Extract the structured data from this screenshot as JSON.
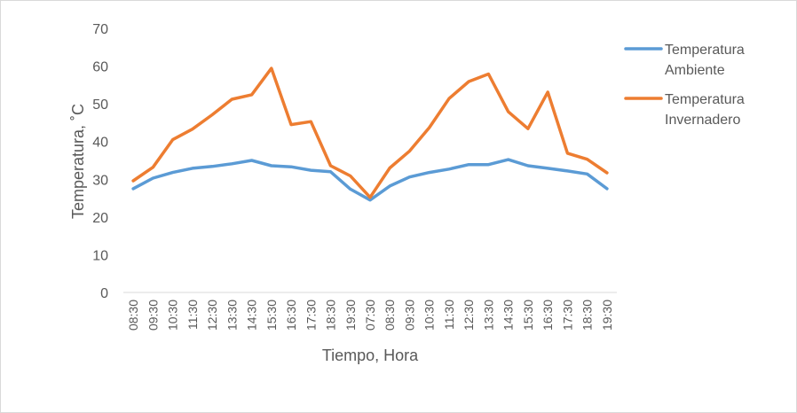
{
  "chart_data": {
    "type": "line",
    "xlabel": "Tiempo, Hora",
    "ylabel": "Temperatura, ˚C",
    "ylim": [
      0,
      70
    ],
    "yticks": [
      0,
      10,
      20,
      30,
      40,
      50,
      60,
      70
    ],
    "grid": false,
    "legend_position": "right",
    "categories": [
      "08:30",
      "09:30",
      "10:30",
      "11:30",
      "12:30",
      "13:30",
      "14:30",
      "15:30",
      "16:30",
      "17:30",
      "18:30",
      "19:30",
      "07:30",
      "08:30",
      "09:30",
      "10:30",
      "11:30",
      "12:30",
      "13:30",
      "14:30",
      "15:30",
      "16:30",
      "17:30",
      "18:30",
      "19:30"
    ],
    "series": [
      {
        "name": "Temperatura Ambiente",
        "name_lines": [
          "Temperatura",
          "Ambiente"
        ],
        "color": "#5B9BD5",
        "values": [
          27.5,
          30.3,
          31.8,
          32.9,
          33.4,
          34.1,
          35.0,
          33.6,
          33.3,
          32.4,
          32.0,
          27.4,
          24.5,
          28.2,
          30.6,
          31.8,
          32.7,
          33.9,
          33.9,
          35.2,
          33.6,
          32.9,
          32.2,
          31.4,
          27.5
        ]
      },
      {
        "name": "Temperatura Invernadero",
        "name_lines": [
          "Temperatura",
          "Invernadero"
        ],
        "color": "#ED7D31",
        "values": [
          29.6,
          33.2,
          40.5,
          43.3,
          47.1,
          51.2,
          52.4,
          59.4,
          44.5,
          45.3,
          33.6,
          30.9,
          25.2,
          33.0,
          37.5,
          43.7,
          51.4,
          55.9,
          57.9,
          47.9,
          43.4,
          53.1,
          36.9,
          35.3,
          31.7
        ]
      }
    ]
  }
}
